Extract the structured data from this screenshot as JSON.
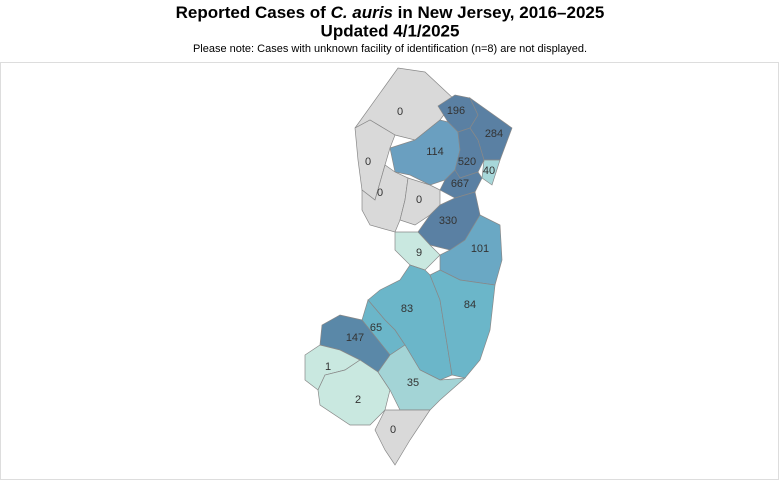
{
  "map": {
    "type": "choropleth",
    "title": [
      "Reported Cases of ",
      "C. auris",
      " in New Jersey, 2016–2025"
    ],
    "subtitle": "Updated 4/1/2025",
    "note": "Please note: Cases with unknown facility of identification (n=8) are not displayed.",
    "regions": [
      {
        "value": 0,
        "color": "#d9d9d9"
      },
      {
        "value": 196,
        "color": "#5a80a3"
      },
      {
        "value": 284,
        "color": "#5a80a3"
      },
      {
        "value": 0,
        "color": "#d9d9d9"
      },
      {
        "value": 114,
        "color": "#6a9fc0"
      },
      {
        "value": 520,
        "color": "#5a80a3"
      },
      {
        "value": 40,
        "color": "#a7d7d9"
      },
      {
        "value": 667,
        "color": "#5a80a3"
      },
      {
        "value": 0,
        "color": "#d9d9d9"
      },
      {
        "value": 0,
        "color": "#d9d9d9"
      },
      {
        "value": 330,
        "color": "#5a80a3"
      },
      {
        "value": 9,
        "color": "#c9e8e0"
      },
      {
        "value": 101,
        "color": "#6aa8c4"
      },
      {
        "value": 83,
        "color": "#6bb6c9"
      },
      {
        "value": 84,
        "color": "#6bb6c9"
      },
      {
        "value": 65,
        "color": "#6bb6c9"
      },
      {
        "value": 147,
        "color": "#5a88a8"
      },
      {
        "value": 1,
        "color": "#c9e8e0"
      },
      {
        "value": 2,
        "color": "#c9e8e0"
      },
      {
        "value": 35,
        "color": "#a3d4d6"
      },
      {
        "value": 0,
        "color": "#d9d9d9"
      }
    ]
  }
}
